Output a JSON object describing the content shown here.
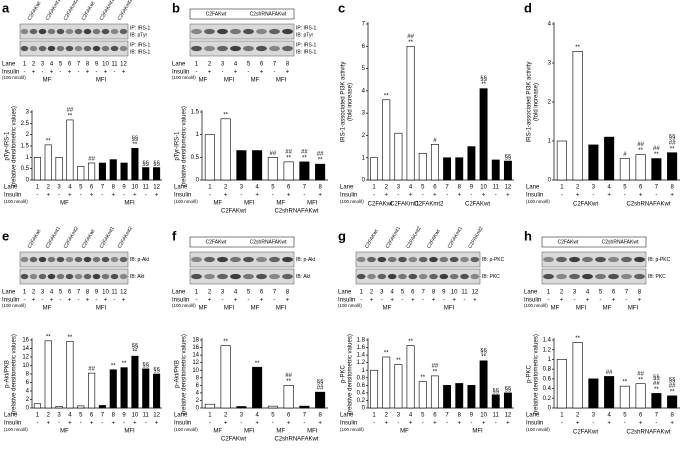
{
  "chart_data": [
    {
      "type": "bar",
      "panel": "a",
      "ylabel": "pTyr-IRS-1",
      "ylabel2": "(relative densitometric values)",
      "ylim": [
        0,
        3
      ],
      "yticks": [
        0,
        0.5,
        1,
        1.5,
        2,
        2.5,
        3
      ],
      "categories": [
        "1",
        "2",
        "3",
        "4",
        "5",
        "6",
        "7",
        "8",
        "9",
        "10",
        "11",
        "12"
      ],
      "values": [
        1.0,
        1.55,
        1.0,
        2.65,
        0.6,
        0.75,
        0.75,
        0.9,
        0.75,
        1.4,
        0.55,
        0.55
      ],
      "colors": [
        "#fff",
        "#fff",
        "#fff",
        "#fff",
        "#fff",
        "#fff",
        "#000",
        "#000",
        "#000",
        "#000",
        "#000",
        "#000"
      ],
      "significance": [
        null,
        [
          "**"
        ],
        null,
        [
          "##",
          "**"
        ],
        null,
        [
          "##"
        ],
        null,
        null,
        null,
        [
          "§§",
          "**"
        ],
        [
          "§§"
        ],
        [
          "§§"
        ]
      ],
      "insulin": [
        "-",
        "+",
        "-",
        "+",
        "-",
        "+",
        "-",
        "+",
        "-",
        "+",
        "-",
        "+"
      ],
      "groups": [
        "MF",
        "MFI"
      ],
      "cells": null,
      "lane_label": "Lane",
      "insulin_label": "Insulin",
      "insulin_note": "(100 nmol/l)"
    },
    {
      "type": "bar",
      "panel": "b",
      "ylabel": "pTyr-IRS-1",
      "ylabel2": "(relative densitometric values)",
      "ylim": [
        0,
        1.5
      ],
      "yticks": [
        0,
        0.5,
        1,
        1.5
      ],
      "categories": [
        "1",
        "2",
        "3",
        "4",
        "5",
        "6",
        "7",
        "8"
      ],
      "values": [
        1.0,
        1.35,
        0.65,
        0.65,
        0.5,
        0.4,
        0.4,
        0.35
      ],
      "colors": [
        "#fff",
        "#fff",
        "#000",
        "#000",
        "#fff",
        "#fff",
        "#000",
        "#000"
      ],
      "significance": [
        null,
        [
          "**"
        ],
        null,
        null,
        [
          "##"
        ],
        [
          "##",
          "**"
        ],
        [
          "##",
          "**"
        ],
        [
          "##",
          "**"
        ]
      ],
      "insulin": [
        "-",
        "+",
        "-",
        "+",
        "-",
        "+",
        "-",
        "+"
      ],
      "groups": [
        "MF",
        "MFI",
        "MF",
        "MFI"
      ],
      "cells": [
        "C2FAKwt",
        "C2shRNAFAKwt"
      ],
      "lane_label": "Lane",
      "insulin_label": "Insulin",
      "insulin_note": "(100 nmol/l)"
    },
    {
      "type": "bar",
      "panel": "c",
      "ylabel": "IRS-1-associated PI3K activity",
      "ylabel2": "(fold increase)",
      "ylim": [
        0,
        7
      ],
      "yticks": [
        0,
        1,
        2,
        3,
        4,
        5,
        6,
        7
      ],
      "categories": [
        "1",
        "2",
        "3",
        "4",
        "5",
        "6",
        "7",
        "8",
        "9",
        "10",
        "11",
        "12"
      ],
      "values": [
        1.0,
        3.6,
        2.1,
        6.0,
        1.2,
        1.6,
        1.0,
        1.0,
        1.5,
        4.1,
        0.9,
        0.85
      ],
      "colors": [
        "#fff",
        "#fff",
        "#fff",
        "#fff",
        "#fff",
        "#fff",
        "#000",
        "#000",
        "#000",
        "#000",
        "#000",
        "#000"
      ],
      "significance": [
        null,
        [
          "**"
        ],
        null,
        [
          "##",
          "**"
        ],
        null,
        [
          "#"
        ],
        null,
        null,
        null,
        [
          "§§",
          "**"
        ],
        null,
        [
          "§§"
        ]
      ],
      "insulin": [
        "-",
        "+",
        "-",
        "+",
        "-",
        "+",
        "-",
        "+",
        "-",
        "+",
        "-",
        "+"
      ],
      "groups": null,
      "cells": [
        "C2FAKwt",
        "C2FAKmt1",
        "C2FAKmt2",
        null,
        "C2FAKwt",
        null
      ],
      "lane_label": "Lane",
      "insulin_label": "Insulin",
      "insulin_note": "(100 nmol/l)"
    },
    {
      "type": "bar",
      "panel": "d",
      "ylabel": "IRS-1-associated PI3K activity",
      "ylabel2": "(fold increase)",
      "ylim": [
        0,
        4
      ],
      "yticks": [
        0,
        1,
        2,
        3,
        4
      ],
      "categories": [
        "1",
        "2",
        "3",
        "4",
        "5",
        "6",
        "7",
        "8"
      ],
      "values": [
        1.0,
        3.3,
        0.9,
        1.1,
        0.55,
        0.65,
        0.55,
        0.7
      ],
      "colors": [
        "#fff",
        "#fff",
        "#000",
        "#000",
        "#fff",
        "#fff",
        "#000",
        "#000"
      ],
      "significance": [
        null,
        [
          "**"
        ],
        null,
        null,
        [
          "#"
        ],
        [
          "##",
          "**"
        ],
        [
          "##",
          "**"
        ],
        [
          "§§",
          "##",
          "**"
        ]
      ],
      "insulin": [
        "-",
        "+",
        "-",
        "+",
        "-",
        "+",
        "-",
        "+"
      ],
      "groups": null,
      "cells": [
        "C2FAKwt",
        "C2shRNAFAKwt"
      ],
      "lane_label": "Lane",
      "insulin_label": "Insulin",
      "insulin_note": "(100 nmol/l)"
    },
    {
      "type": "bar",
      "panel": "e",
      "ylabel": "p-Akt/PKB",
      "ylabel2": "(relative densitometric values)",
      "ylim": [
        0,
        16
      ],
      "yticks": [
        0,
        2,
        4,
        6,
        8,
        10,
        12,
        14,
        16
      ],
      "categories": [
        "1",
        "2",
        "3",
        "4",
        "5",
        "6",
        "7",
        "8",
        "9",
        "10",
        "11",
        "12"
      ],
      "values": [
        1.0,
        15.8,
        0.4,
        15.7,
        0.5,
        8.2,
        0.6,
        9.0,
        9.5,
        12.2,
        9.2,
        8.0
      ],
      "colors": [
        "#fff",
        "#fff",
        "#fff",
        "#fff",
        "#fff",
        "#fff",
        "#000",
        "#000",
        "#000",
        "#000",
        "#000",
        "#000"
      ],
      "significance": [
        null,
        [
          "**"
        ],
        null,
        [
          "**"
        ],
        null,
        [
          "##"
        ],
        null,
        [
          "**"
        ],
        [
          "**"
        ],
        [
          "§§",
          "**"
        ],
        [
          "§§"
        ],
        [
          "§§"
        ]
      ],
      "insulin": [
        "-",
        "+",
        "-",
        "+",
        "-",
        "+",
        "-",
        "+",
        "-",
        "+",
        "-",
        "+"
      ],
      "groups": [
        "MF",
        "MFI"
      ],
      "cells": null,
      "lane_label": "Lane",
      "insulin_label": "Insulin",
      "insulin_note": "(100 nmol/l)"
    },
    {
      "type": "bar",
      "panel": "f",
      "ylabel": "p-Akt/PKB",
      "ylabel2": "(relative densitometric values)",
      "ylim": [
        0,
        18
      ],
      "yticks": [
        0,
        2,
        4,
        6,
        8,
        10,
        12,
        14,
        16,
        18
      ],
      "categories": [
        "1",
        "2",
        "3",
        "4",
        "5",
        "6",
        "7",
        "8"
      ],
      "values": [
        1.0,
        16.5,
        0.4,
        10.8,
        0.5,
        6.0,
        0.5,
        4.2
      ],
      "colors": [
        "#fff",
        "#fff",
        "#000",
        "#000",
        "#fff",
        "#fff",
        "#000",
        "#000"
      ],
      "significance": [
        null,
        [
          "**"
        ],
        null,
        [
          "**"
        ],
        null,
        [
          "##",
          "**"
        ],
        null,
        [
          "§§",
          "##"
        ]
      ],
      "insulin": [
        "-",
        "+",
        "-",
        "+",
        "-",
        "+",
        "-",
        "+"
      ],
      "groups": [
        "MF",
        "MFI",
        "MF",
        "MFI"
      ],
      "cells": [
        "C2FAKwt",
        "C2shRNAFAKwt"
      ],
      "lane_label": "Lane",
      "insulin_label": "Insulin",
      "insulin_note": "(100 nmol/l)"
    },
    {
      "type": "bar",
      "panel": "g",
      "ylabel": "p-PKC",
      "ylabel2": "(relative densitometric values)",
      "ylim": [
        0,
        1.8
      ],
      "yticks": [
        0,
        0.2,
        0.4,
        0.6,
        0.8,
        1,
        1.2,
        1.4,
        1.6,
        1.8
      ],
      "categories": [
        "1",
        "2",
        "3",
        "4",
        "5",
        "6",
        "7",
        "8",
        "9",
        "10",
        "11",
        "12"
      ],
      "values": [
        1.0,
        1.35,
        1.15,
        1.65,
        0.7,
        0.85,
        0.6,
        0.65,
        0.6,
        1.25,
        0.35,
        0.4
      ],
      "colors": [
        "#fff",
        "#fff",
        "#fff",
        "#fff",
        "#fff",
        "#fff",
        "#000",
        "#000",
        "#000",
        "#000",
        "#000",
        "#000"
      ],
      "significance": [
        null,
        [
          "**"
        ],
        [
          "**"
        ],
        [
          "**"
        ],
        [
          "**"
        ],
        [
          "##",
          "**"
        ],
        null,
        null,
        null,
        [
          "§§",
          "**"
        ],
        [
          "§§"
        ],
        [
          "§§"
        ]
      ],
      "insulin": [
        "-",
        "+",
        "-",
        "+",
        "-",
        "+",
        "-",
        "+",
        "-",
        "+",
        "-",
        "+"
      ],
      "groups": [
        "MF",
        "MFI"
      ],
      "cells": null,
      "lane_label": "Lane",
      "insulin_label": "Insulin",
      "insulin_note": "(100 nmol/l)"
    },
    {
      "type": "bar",
      "panel": "h",
      "ylabel": "p-PKC",
      "ylabel2": "(relative densitometric values)",
      "ylim": [
        0,
        1.4
      ],
      "yticks": [
        0,
        0.2,
        0.4,
        0.6,
        0.8,
        1,
        1.2,
        1.4
      ],
      "categories": [
        "1",
        "2",
        "3",
        "4",
        "5",
        "6",
        "7",
        "8"
      ],
      "values": [
        1.0,
        1.35,
        0.6,
        0.65,
        0.45,
        0.5,
        0.3,
        0.25
      ],
      "colors": [
        "#fff",
        "#fff",
        "#000",
        "#000",
        "#fff",
        "#fff",
        "#000",
        "#000"
      ],
      "significance": [
        null,
        [
          "**"
        ],
        null,
        [
          "##"
        ],
        [
          "**"
        ],
        [
          "##",
          "**"
        ],
        [
          "§§",
          "##",
          "**"
        ],
        [
          "§§",
          "##",
          "**"
        ]
      ],
      "insulin": [
        "-",
        "+",
        "-",
        "+",
        "-",
        "+",
        "-",
        "+"
      ],
      "groups": null,
      "cells": [
        "C2FAKwt",
        "C2shRNAFAKwt"
      ],
      "lane_label": "Lane",
      "insulin_label": "Insulin",
      "insulin_note": "(100 nmol/l)"
    }
  ],
  "blots": [
    {
      "panel": "a",
      "headers": [
        "C2FAKwt",
        "C2FAKmt1",
        "C2FAKmt2",
        "C2FAKwt",
        "C2FAKmt1",
        "C2FAKmt2"
      ],
      "strips": [
        [
          "IP: IRS-1",
          "IB: pTyr"
        ],
        [
          "IP: IRS-1",
          "IB: IRS-1"
        ]
      ],
      "lanes": [
        "1",
        "2",
        "3",
        "4",
        "5",
        "6",
        "7",
        "8",
        "9",
        "10",
        "11",
        "12"
      ],
      "insulin": [
        "-",
        "+",
        "-",
        "+",
        "-",
        "+",
        "-",
        "+",
        "-",
        "+",
        "-",
        "+"
      ],
      "groups": [
        "MF",
        "MFI"
      ],
      "lane_label": "Lane",
      "insulin_label": "Insulin",
      "insulin_note": "(100 nmol/l)"
    },
    {
      "panel": "b",
      "headers": [
        "C2FAKwt",
        "C2shRNAFAKwt"
      ],
      "strips": [
        [
          "IP: IRS-1",
          "IB: pTyr"
        ],
        [
          "IP: IRS-1",
          "IB: IRS-1"
        ]
      ],
      "lanes": [
        "1",
        "2",
        "3",
        "4",
        "5",
        "6",
        "7",
        "8"
      ],
      "insulin": [
        "-",
        "+",
        "-",
        "+",
        "-",
        "+",
        "-",
        "+"
      ],
      "groups": [
        "MF",
        "MFI",
        "MF",
        "MFI"
      ],
      "lane_label": "Lane",
      "insulin_label": "Insulin",
      "insulin_note": "(100 nmol/l)"
    },
    null,
    null,
    {
      "panel": "e",
      "headers": [
        "C2FAKwt",
        "C2FAKmt1",
        "C2FAKmt2",
        "C2FAKwt",
        "C2FAKmt1",
        "C2FAKmt2"
      ],
      "strips": [
        [
          "IB: p-Akt"
        ],
        [
          "IB: Akt"
        ]
      ],
      "lanes": [
        "1",
        "2",
        "3",
        "4",
        "5",
        "6",
        "7",
        "8",
        "9",
        "10",
        "11",
        "12"
      ],
      "insulin": [
        "-",
        "+",
        "-",
        "+",
        "-",
        "+",
        "-",
        "+",
        "-",
        "+",
        "-",
        "+"
      ],
      "groups": [
        "MF",
        "MFI"
      ],
      "lane_label": "Lane",
      "insulin_label": "Insulin",
      "insulin_note": "(100 nmol/l)"
    },
    {
      "panel": "f",
      "headers": [
        "C2FAKwt",
        "C2shRNAFAKwt"
      ],
      "strips": [
        [
          "IB: p-Akt"
        ],
        [
          "IB: Akt"
        ]
      ],
      "lanes": [
        "1",
        "2",
        "3",
        "4",
        "5",
        "6",
        "7",
        "8"
      ],
      "insulin": [
        "-",
        "+",
        "-",
        "+",
        "-",
        "+",
        "-",
        "+"
      ],
      "groups": [
        "MF",
        "MFI",
        "MF",
        "MFI"
      ],
      "lane_label": "Lane",
      "insulin_label": "Insulin",
      "insulin_note": "(100 nmol/l)"
    },
    {
      "panel": "g",
      "headers": [
        "C2FAKwt",
        "C2FAKmt1",
        "C2FAKmt2",
        "C2FAKwt",
        "C2FAKmt1",
        "C2FAKmt2"
      ],
      "strips": [
        [
          "IB: p-PKC"
        ],
        [
          "IB: PKC"
        ]
      ],
      "lanes": [
        "1",
        "2",
        "3",
        "4",
        "5",
        "6",
        "7",
        "8",
        "9",
        "10",
        "11",
        "12"
      ],
      "insulin": [
        "-",
        "+",
        "-",
        "+",
        "-",
        "+",
        "-",
        "+",
        "-",
        "+",
        "-",
        "+"
      ],
      "groups": [
        "MF",
        "MFI"
      ],
      "lane_label": "Lane",
      "insulin_label": "Insulin",
      "insulin_note": "(100 nmol/l)"
    },
    {
      "panel": "h",
      "headers": [
        "C2FAKwt",
        "C2shRNAFAKwt"
      ],
      "strips": [
        [
          "IB: p-PKC"
        ],
        [
          "IB: PKC"
        ]
      ],
      "lanes": [
        "1",
        "2",
        "3",
        "4",
        "5",
        "6",
        "7",
        "8"
      ],
      "insulin": [
        "-",
        "+",
        "-",
        "+",
        "-",
        "+",
        "-",
        "+"
      ],
      "groups": [
        "MF",
        "MFI",
        "MF",
        "MFI"
      ],
      "lane_label": "Lane",
      "insulin_label": "Insulin",
      "insulin_note": "(100 nmol/l)"
    }
  ]
}
